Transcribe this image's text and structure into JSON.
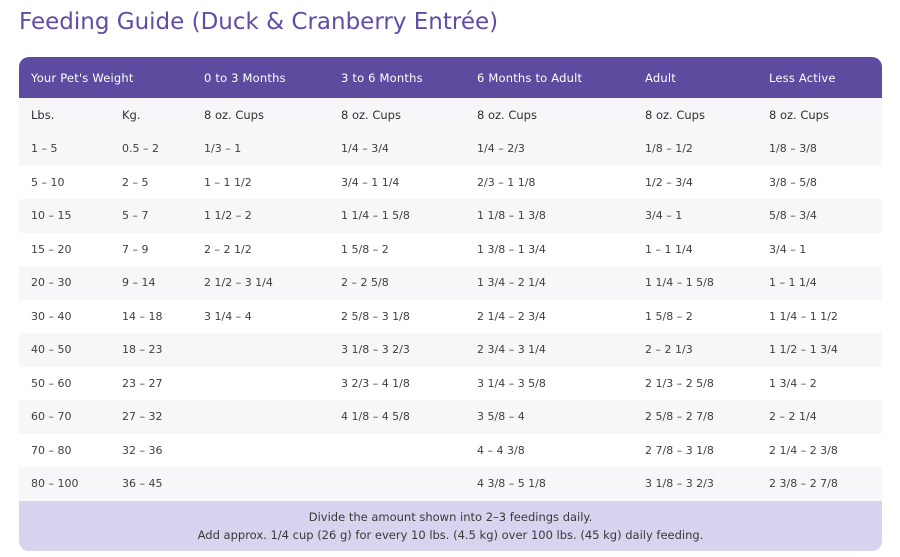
{
  "title": "Feeding Guide (Duck & Cranberry Entrée)",
  "headers": [
    "Your Pet's Weight",
    "",
    "0 to 3 Months",
    "3 to 6 Months",
    "6 Months to Adult",
    "Adult",
    "Less Active"
  ],
  "units": [
    "Lbs.",
    "Kg.",
    "8 oz. Cups",
    "8 oz. Cups",
    "8 oz. Cups",
    "8 oz. Cups",
    "8 oz. Cups"
  ],
  "rows": [
    [
      "1 – 5",
      "0.5 – 2",
      "1/3 – 1",
      "1/4 – 3/4",
      "1/4 – 2/3",
      "1/8 – 1/2",
      "1/8 – 3/8"
    ],
    [
      "5 – 10",
      "2 – 5",
      "1 – 1 1/2",
      "3/4 – 1 1/4",
      "2/3 – 1 1/8",
      "1/2 – 3/4",
      "3/8 – 5/8"
    ],
    [
      "10 – 15",
      "5 – 7",
      "1 1/2 – 2",
      "1 1/4 – 1 5/8",
      "1 1/8 – 1 3/8",
      "3/4 – 1",
      "5/8 – 3/4"
    ],
    [
      "15 – 20",
      "7 – 9",
      "2 – 2 1/2",
      "1 5/8 – 2",
      "1 3/8 – 1 3/4",
      "1 – 1 1/4",
      "3/4 – 1"
    ],
    [
      "20 – 30",
      "9 – 14",
      "2 1/2 – 3 1/4",
      "2 – 2 5/8",
      "1 3/4 – 2 1/4",
      "1 1/4 – 1 5/8",
      "1 – 1 1/4"
    ],
    [
      "30 – 40",
      "14 – 18",
      "3 1/4 – 4",
      "2 5/8 – 3 1/8",
      "2 1/4 – 2 3/4",
      "1 5/8 – 2",
      "1 1/4 – 1 1/2"
    ],
    [
      "40 – 50",
      "18 – 23",
      "",
      "3 1/8 – 3 2/3",
      "2 3/4 – 3 1/4",
      "2 – 2 1/3",
      "1 1/2 – 1 3/4"
    ],
    [
      "50 – 60",
      "23 – 27",
      "",
      "3 2/3 – 4 1/8",
      "3 1/4 – 3 5/8",
      "2 1/3 – 2 5/8",
      "1 3/4 – 2"
    ],
    [
      "60 – 70",
      "27 – 32",
      "",
      "4 1/8 – 4 5/8",
      "3 5/8 – 4",
      "2 5/8 – 2 7/8",
      "2 – 2 1/4"
    ],
    [
      "70 – 80",
      "32 – 36",
      "",
      "",
      "4 – 4 3/8",
      "2 7/8 – 3 1/8",
      "2 1/4 – 2 3/8"
    ],
    [
      "80 – 100",
      "36 – 45",
      "",
      "",
      "4 3/8 – 5 1/8",
      "3 1/8 – 3 2/3",
      "2 3/8 – 2 7/8"
    ]
  ],
  "footer": {
    "line1": "Divide the amount shown into 2–3 feedings daily.",
    "line2": "Add approx. 1/4 cup (26 g) for every 10 lbs. (4.5 kg) over 100 lbs. (45 kg) daily feeding."
  }
}
